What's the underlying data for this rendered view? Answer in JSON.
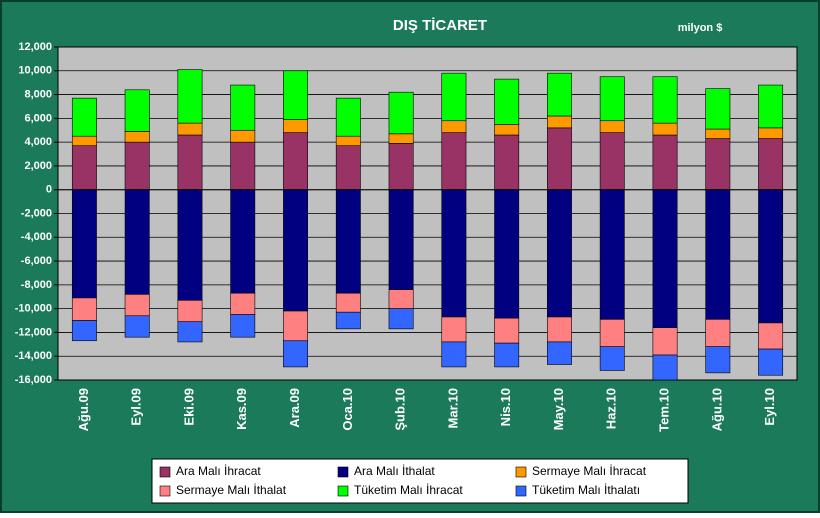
{
  "chart_data": {
    "type": "bar",
    "stacked": true,
    "title": "DIŞ TİCARET",
    "annotation": "milyon $",
    "categories": [
      "Ağu.09",
      "Eyl.09",
      "Eki.09",
      "Kas.09",
      "Ara.09",
      "Oca.10",
      "Şub.10",
      "Mar.10",
      "Nis.10",
      "May.10",
      "Haz.10",
      "Tem.10",
      "Ağu.10",
      "Eyl.10"
    ],
    "series": [
      {
        "name": "Ara Malı İhracat",
        "color": "#993366",
        "values": [
          3700,
          4000,
          4600,
          4000,
          4800,
          3700,
          3900,
          4800,
          4600,
          5200,
          4800,
          4600,
          4300,
          4300
        ]
      },
      {
        "name": "Ara Malı İthalat",
        "color": "#000080",
        "values": [
          -9100,
          -8800,
          -9300,
          -8700,
          -10200,
          -8700,
          -8400,
          -10700,
          -10800,
          -10700,
          -10900,
          -11600,
          -10900,
          -11200
        ]
      },
      {
        "name": "Sermaye Malı İhracat",
        "color": "#ff9900",
        "values": [
          800,
          900,
          1000,
          1000,
          1100,
          800,
          800,
          1000,
          900,
          1000,
          1000,
          1000,
          800,
          900
        ]
      },
      {
        "name": "Sermaye Malı İthalat",
        "color": "#ff8080",
        "values": [
          -1900,
          -1800,
          -1800,
          -1800,
          -2500,
          -1600,
          -1600,
          -2100,
          -2100,
          -2100,
          -2300,
          -2300,
          -2300,
          -2200
        ]
      },
      {
        "name": "Tüketim Malı İhracat",
        "color": "#00ff00",
        "values": [
          3200,
          3500,
          4500,
          3800,
          4100,
          3200,
          3500,
          4000,
          3800,
          3600,
          3700,
          3900,
          3400,
          3600
        ]
      },
      {
        "name": "Tüketim Malı İthalatı",
        "color": "#3366ff",
        "values": [
          -1700,
          -1800,
          -1700,
          -1900,
          -2200,
          -1400,
          -1700,
          -2100,
          -2000,
          -1900,
          -2000,
          -2100,
          -2200,
          -2200
        ]
      }
    ],
    "ylim": [
      -16000,
      12000
    ],
    "yticks": [
      {
        "value": 12000,
        "label": "12,000"
      },
      {
        "value": 10000,
        "label": "10,000"
      },
      {
        "value": 8000,
        "label": "8,000"
      },
      {
        "value": 6000,
        "label": "6,000"
      },
      {
        "value": 4000,
        "label": "4,000"
      },
      {
        "value": 2000,
        "label": "2,000"
      },
      0,
      {
        "value": -2000,
        "label": "-2,000"
      },
      {
        "value": -4000,
        "label": "-4,000"
      },
      {
        "value": -6000,
        "label": "-6,000"
      },
      {
        "value": -8000,
        "label": "-8,000"
      },
      {
        "value": -10000,
        "label": "-10,000"
      },
      {
        "value": -12000,
        "label": "-12,000"
      },
      {
        "value": -14000,
        "label": "-14,000"
      },
      {
        "value": -16000,
        "label": "-16,000"
      }
    ],
    "grid": true,
    "legend": "bottom"
  }
}
